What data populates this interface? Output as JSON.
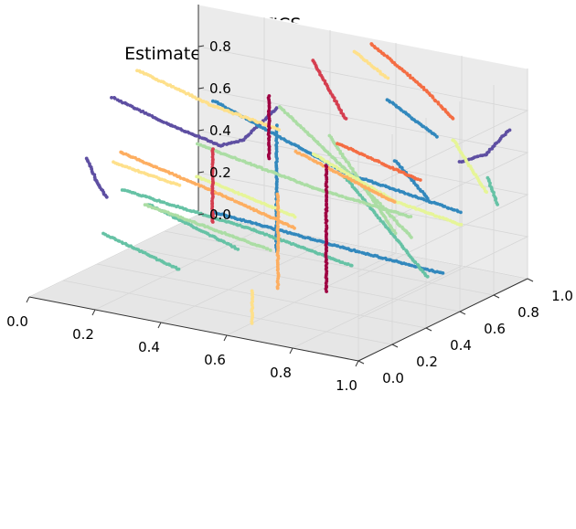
{
  "chart_data": {
    "type": "scatter",
    "projection": "3d",
    "title": [
      "OPTICS",
      "Estimated number of clusters: 87"
    ],
    "xlabel": "",
    "ylabel": "",
    "zlabel": "",
    "xlim": [
      0.0,
      1.0
    ],
    "ylim": [
      0.0,
      1.0
    ],
    "zlim": [
      0.0,
      1.0
    ],
    "x_ticks": [
      "0.0",
      "0.2",
      "0.4",
      "0.6",
      "0.8",
      "1.0"
    ],
    "y_ticks": [
      "0.0",
      "0.2",
      "0.4",
      "0.6",
      "0.8",
      "1.0"
    ],
    "z_ticks": [
      "0.0",
      "0.2",
      "0.4",
      "0.6",
      "0.8"
    ],
    "z_tick_values": [
      0.0,
      0.2,
      0.4,
      0.6,
      0.8
    ],
    "grid": true,
    "legend": "none",
    "colormap": "Spectral",
    "pane_colors": {
      "x": "#f2f2f2",
      "y": "#ebebeb",
      "z": "#e6e6e6"
    },
    "series": [
      {
        "color": "#5e4fa2",
        "points": [
          [
            0.02,
            0.45,
            0.78
          ],
          [
            0.2,
            0.45,
            0.7
          ],
          [
            0.35,
            0.45,
            0.65
          ],
          [
            0.42,
            0.45,
            0.7
          ],
          [
            0.52,
            0.45,
            0.88
          ]
        ]
      },
      {
        "color": "#5e4fa2",
        "points": [
          [
            0.02,
            0.3,
            0.55
          ],
          [
            0.05,
            0.3,
            0.45
          ],
          [
            0.08,
            0.3,
            0.38
          ]
        ]
      },
      {
        "color": "#5e4fa2",
        "points": [
          [
            0.82,
            0.95,
            0.52
          ],
          [
            0.9,
            0.95,
            0.58
          ],
          [
            0.97,
            0.95,
            0.72
          ]
        ]
      },
      {
        "color": "#3288bd",
        "points": [
          [
            0.2,
            0.7,
            0.72
          ],
          [
            0.6,
            0.7,
            0.5
          ],
          [
            0.95,
            0.7,
            0.42
          ]
        ]
      },
      {
        "color": "#3288bd",
        "points": [
          [
            0.3,
            0.5,
            0.3
          ],
          [
            0.7,
            0.5,
            0.25
          ],
          [
            1.0,
            0.5,
            0.22
          ]
        ]
      },
      {
        "color": "#3288bd",
        "points": [
          [
            0.6,
            0.95,
            0.75
          ],
          [
            0.75,
            0.95,
            0.62
          ]
        ]
      },
      {
        "color": "#3288bd",
        "points": [
          [
            0.7,
            0.8,
            0.55
          ],
          [
            0.8,
            0.8,
            0.4
          ]
        ]
      },
      {
        "color": "#3288bd",
        "points": [
          [
            0.52,
            0.45,
            0.8
          ],
          [
            0.52,
            0.45,
            0.2
          ]
        ]
      },
      {
        "color": "#66c2a5",
        "points": [
          [
            0.05,
            0.45,
            0.35
          ],
          [
            0.45,
            0.45,
            0.28
          ],
          [
            0.75,
            0.45,
            0.2
          ]
        ]
      },
      {
        "color": "#66c2a5",
        "points": [
          [
            0.08,
            0.55,
            0.25
          ],
          [
            0.35,
            0.55,
            0.12
          ]
        ]
      },
      {
        "color": "#66c2a5",
        "points": [
          [
            0.02,
            0.4,
            0.15
          ],
          [
            0.25,
            0.4,
            0.05
          ]
        ]
      },
      {
        "color": "#66c2a5",
        "points": [
          [
            0.93,
            0.9,
            0.5
          ],
          [
            0.96,
            0.9,
            0.38
          ]
        ]
      },
      {
        "color": "#66c2a5",
        "points": [
          [
            0.6,
            0.7,
            0.48
          ],
          [
            0.85,
            0.7,
            0.08
          ]
        ]
      },
      {
        "color": "#abdda4",
        "points": [
          [
            0.15,
            0.7,
            0.5
          ],
          [
            0.5,
            0.7,
            0.4
          ],
          [
            0.8,
            0.7,
            0.35
          ]
        ]
      },
      {
        "color": "#abdda4",
        "points": [
          [
            0.35,
            0.8,
            0.7
          ],
          [
            0.6,
            0.8,
            0.4
          ],
          [
            0.75,
            0.8,
            0.2
          ]
        ]
      },
      {
        "color": "#abdda4",
        "points": [
          [
            0.12,
            0.45,
            0.3
          ],
          [
            0.5,
            0.45,
            0.2
          ]
        ]
      },
      {
        "color": "#abdda4",
        "points": [
          [
            0.45,
            0.9,
            0.55
          ],
          [
            0.65,
            0.9,
            0.15
          ]
        ]
      },
      {
        "color": "#e6f598",
        "points": [
          [
            0.4,
            0.9,
            0.45
          ],
          [
            0.65,
            0.9,
            0.3
          ],
          [
            0.85,
            0.9,
            0.25
          ]
        ]
      },
      {
        "color": "#e6f598",
        "points": [
          [
            0.2,
            0.6,
            0.4
          ],
          [
            0.5,
            0.6,
            0.3
          ]
        ]
      },
      {
        "color": "#e6f598",
        "points": [
          [
            0.8,
            0.95,
            0.62
          ],
          [
            0.9,
            0.95,
            0.4
          ]
        ]
      },
      {
        "color": "#fee08b",
        "points": [
          [
            0.02,
            0.6,
            0.85
          ],
          [
            0.25,
            0.6,
            0.75
          ],
          [
            0.45,
            0.6,
            0.7
          ]
        ]
      },
      {
        "color": "#fee08b",
        "points": [
          [
            0.05,
            0.4,
            0.5
          ],
          [
            0.25,
            0.4,
            0.45
          ]
        ]
      },
      {
        "color": "#fee08b",
        "points": [
          [
            0.5,
            0.95,
            0.95
          ],
          [
            0.6,
            0.95,
            0.85
          ]
        ]
      },
      {
        "color": "#fee08b",
        "points": [
          [
            0.6,
            0.15,
            0.15
          ],
          [
            0.6,
            0.15,
            0.0
          ]
        ]
      },
      {
        "color": "#fdae61",
        "points": [
          [
            0.02,
            0.5,
            0.5
          ],
          [
            0.3,
            0.5,
            0.4
          ],
          [
            0.55,
            0.5,
            0.3
          ]
        ]
      },
      {
        "color": "#fdae61",
        "points": [
          [
            0.4,
            0.8,
            0.5
          ],
          [
            0.7,
            0.8,
            0.35
          ]
        ]
      },
      {
        "color": "#fdae61",
        "points": [
          [
            0.55,
            0.4,
            0.5
          ],
          [
            0.55,
            0.4,
            0.05
          ]
        ]
      },
      {
        "color": "#f46d43",
        "points": [
          [
            0.55,
            0.95,
            1.0
          ],
          [
            0.7,
            0.95,
            0.85
          ],
          [
            0.8,
            0.95,
            0.72
          ]
        ]
      },
      {
        "color": "#f46d43",
        "points": [
          [
            0.5,
            0.85,
            0.55
          ],
          [
            0.75,
            0.85,
            0.45
          ]
        ]
      },
      {
        "color": "#d53e4f",
        "points": [
          [
            0.45,
            0.8,
            0.95
          ],
          [
            0.55,
            0.8,
            0.7
          ]
        ]
      },
      {
        "color": "#d53e4f",
        "points": [
          [
            0.3,
            0.5,
            0.6
          ],
          [
            0.3,
            0.5,
            0.25
          ]
        ]
      },
      {
        "color": "#9e0142",
        "points": [
          [
            0.62,
            0.55,
            0.6
          ],
          [
            0.62,
            0.55,
            0.0
          ]
        ]
      },
      {
        "color": "#9e0142",
        "points": [
          [
            0.42,
            0.6,
            0.85
          ],
          [
            0.42,
            0.6,
            0.55
          ]
        ]
      }
    ]
  }
}
